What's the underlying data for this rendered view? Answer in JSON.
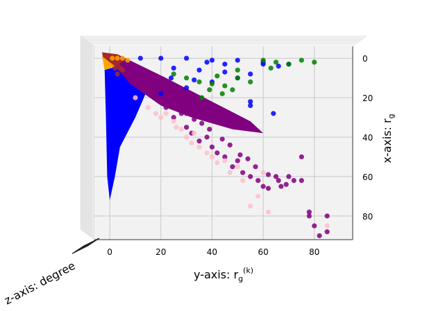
{
  "chart_data": {
    "type": "scatter",
    "projection": "3d",
    "xlabel": "x-axis:  r_g",
    "ylabel": "y-axis:  r_g^(k)",
    "zlabel": "z-axis:  degree",
    "x_axis": {
      "range": [
        -6,
        92
      ],
      "ticks": [
        0,
        20,
        40,
        60,
        80
      ],
      "inverted": true
    },
    "y_axis": {
      "range": [
        -6,
        95
      ],
      "ticks": [
        0,
        20,
        40,
        60,
        80
      ]
    },
    "grid": true,
    "legend": "none",
    "series": [
      {
        "color": "#0000ff",
        "points": [
          [
            12,
            0
          ],
          [
            20,
            0
          ],
          [
            30,
            0
          ],
          [
            40,
            1
          ],
          [
            50,
            1
          ],
          [
            60,
            2
          ],
          [
            70,
            3
          ],
          [
            25,
            5
          ],
          [
            35,
            6
          ],
          [
            45,
            7
          ],
          [
            55,
            8
          ],
          [
            50,
            10
          ],
          [
            40,
            12
          ],
          [
            30,
            15
          ],
          [
            20,
            18
          ],
          [
            24,
            10
          ],
          [
            33,
            11
          ],
          [
            55,
            22
          ],
          [
            55,
            24
          ],
          [
            64,
            28
          ],
          [
            60,
            3
          ],
          [
            66,
            4
          ],
          [
            45,
            3
          ],
          [
            38,
            2
          ]
        ]
      },
      {
        "color": "#008000",
        "points": [
          [
            25,
            8
          ],
          [
            30,
            10
          ],
          [
            35,
            12
          ],
          [
            40,
            13
          ],
          [
            45,
            14
          ],
          [
            50,
            10
          ],
          [
            55,
            12
          ],
          [
            60,
            1
          ],
          [
            65,
            2
          ],
          [
            70,
            3
          ],
          [
            75,
            1
          ],
          [
            80,
            2
          ],
          [
            63,
            5
          ],
          [
            50,
            6
          ],
          [
            42,
            9
          ],
          [
            39,
            16
          ],
          [
            44,
            18
          ],
          [
            36,
            20
          ],
          [
            48,
            16
          ]
        ]
      },
      {
        "color": "#800080",
        "points": [
          [
            18,
            20
          ],
          [
            22,
            25
          ],
          [
            25,
            30
          ],
          [
            28,
            28
          ],
          [
            30,
            35
          ],
          [
            32,
            38
          ],
          [
            35,
            42
          ],
          [
            38,
            40
          ],
          [
            40,
            45
          ],
          [
            42,
            48
          ],
          [
            45,
            50
          ],
          [
            48,
            55
          ],
          [
            50,
            52
          ],
          [
            52,
            58
          ],
          [
            55,
            60
          ],
          [
            58,
            62
          ],
          [
            60,
            65
          ],
          [
            62,
            66
          ],
          [
            65,
            60
          ],
          [
            67,
            65
          ],
          [
            70,
            60
          ],
          [
            72,
            62
          ],
          [
            75,
            50
          ],
          [
            78,
            80
          ],
          [
            80,
            85
          ],
          [
            82,
            90
          ],
          [
            85,
            88
          ],
          [
            30,
            28
          ],
          [
            33,
            31
          ],
          [
            36,
            33
          ],
          [
            39,
            36
          ],
          [
            44,
            41
          ],
          [
            47,
            44
          ],
          [
            51,
            49
          ],
          [
            54,
            51
          ],
          [
            57,
            55
          ],
          [
            62,
            59
          ],
          [
            66,
            62
          ],
          [
            69,
            64
          ],
          [
            75,
            62
          ],
          [
            78,
            78
          ],
          [
            85,
            80
          ]
        ]
      },
      {
        "color": "#ffc0cb",
        "points": [
          [
            10,
            20
          ],
          [
            15,
            25
          ],
          [
            20,
            30
          ],
          [
            22,
            28
          ],
          [
            26,
            35
          ],
          [
            30,
            40
          ],
          [
            33,
            38
          ],
          [
            35,
            45
          ],
          [
            40,
            50
          ],
          [
            45,
            52
          ],
          [
            50,
            55
          ],
          [
            55,
            75
          ],
          [
            60,
            58
          ],
          [
            85,
            85
          ],
          [
            25,
            32
          ],
          [
            28,
            36
          ],
          [
            32,
            43
          ],
          [
            38,
            48
          ],
          [
            42,
            53
          ],
          [
            47,
            58
          ],
          [
            52,
            62
          ],
          [
            58,
            70
          ],
          [
            62,
            78
          ],
          [
            18,
            28
          ]
        ]
      },
      {
        "color": "#a52a2a",
        "points": [
          [
            0,
            0
          ],
          [
            1,
            1
          ],
          [
            2,
            2
          ],
          [
            3,
            3
          ],
          [
            4,
            5
          ],
          [
            5,
            6
          ],
          [
            3,
            8
          ],
          [
            2,
            5
          ]
        ]
      },
      {
        "color": "#ffa500",
        "points": [
          [
            1,
            0
          ],
          [
            3,
            0
          ],
          [
            5,
            0
          ],
          [
            7,
            1
          ]
        ]
      }
    ]
  }
}
